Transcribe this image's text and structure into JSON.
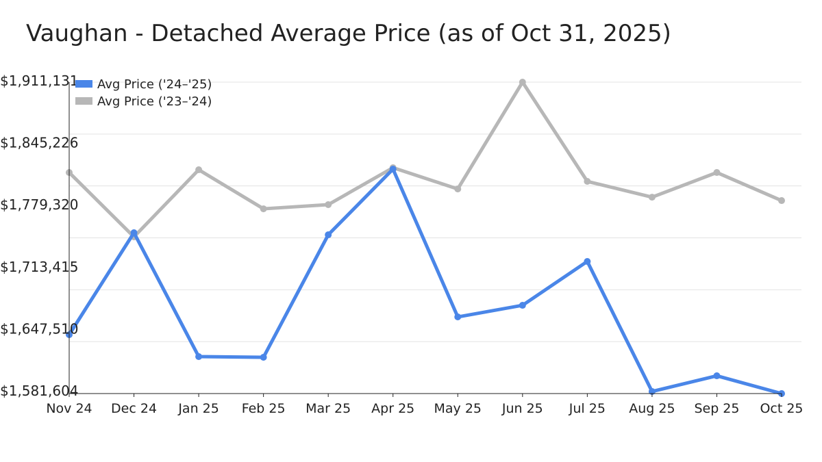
{
  "chart_data": {
    "type": "line",
    "title": "Vaughan - Detached Average Price (as of Oct 31, 2025)",
    "xlabel": "",
    "ylabel": "",
    "categories": [
      "Nov 24",
      "Dec 24",
      "Jan 25",
      "Feb 25",
      "Mar 25",
      "Apr 25",
      "May 25",
      "Jun 25",
      "Jul 25",
      "Aug 25",
      "Sep 25",
      "Oct 25"
    ],
    "ylim": [
      1581604,
      1911131
    ],
    "y_tick_labels": [
      "$1,911,131",
      "$1,845,226",
      "$1,779,320",
      "$1,713,415",
      "$1,647,510",
      "$1,581,604"
    ],
    "grid": true,
    "legend_position": "top-left",
    "series": [
      {
        "name": "Avg Price ('24–'25)",
        "color": "#4a86e8",
        "values": [
          1643900,
          1751800,
          1620700,
          1620000,
          1749600,
          1819100,
          1662700,
          1675000,
          1721400,
          1583800,
          1600400,
          1581604
        ]
      },
      {
        "name": "Avg Price ('23–'24)",
        "color": "#b7b7b7",
        "values": [
          1815500,
          1747400,
          1818400,
          1777100,
          1781500,
          1820600,
          1798100,
          1911131,
          1806100,
          1789400,
          1815500,
          1785800
        ]
      }
    ]
  }
}
